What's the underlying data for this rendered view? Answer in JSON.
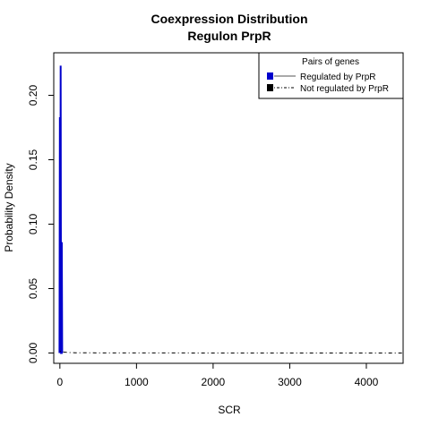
{
  "chart_data": {
    "type": "line",
    "title": "Coexpression Distribution",
    "subtitle": "Regulon PrpR",
    "xlabel": "SCR",
    "ylabel": "Probability Density",
    "xlim": [
      -80,
      4480
    ],
    "ylim": [
      -0.008,
      0.233
    ],
    "x_ticks": [
      0,
      1000,
      2000,
      3000,
      4000
    ],
    "x_tick_labels": [
      "0",
      "1000",
      "2000",
      "3000",
      "4000"
    ],
    "y_ticks": [
      0.0,
      0.05,
      0.1,
      0.15,
      0.2
    ],
    "y_tick_labels": [
      "0.00",
      "0.05",
      "0.10",
      "0.15",
      "0.20"
    ],
    "grid": false,
    "legend": {
      "title": "Pairs of genes",
      "position": "top-right",
      "entries": [
        {
          "label": "Regulated by  PrpR",
          "color": "#0000cc",
          "line": "solid"
        },
        {
          "label": "Not regulated by  PrpR",
          "color": "#000000",
          "line": "dashdot"
        }
      ]
    },
    "series": [
      {
        "name": "Regulated by  PrpR",
        "color": "#0000cc",
        "style": "spikes",
        "x": [
          -5,
          0,
          5,
          10,
          15,
          20,
          25,
          30,
          35
        ],
        "y": [
          0.0,
          0.183,
          0.0,
          0.223,
          0.0,
          0.0,
          0.086,
          0.0,
          0.0
        ]
      },
      {
        "name": "Not regulated by  PrpR",
        "color": "#000000",
        "style": "dashdot",
        "x": [
          0,
          50,
          100,
          200,
          500,
          1000,
          2000,
          3000,
          4000,
          4480
        ],
        "y": [
          0.0015,
          0.0008,
          0.0004,
          0.0002,
          0.0001,
          5e-05,
          2e-05,
          1e-05,
          0.0,
          0.0
        ]
      }
    ]
  }
}
